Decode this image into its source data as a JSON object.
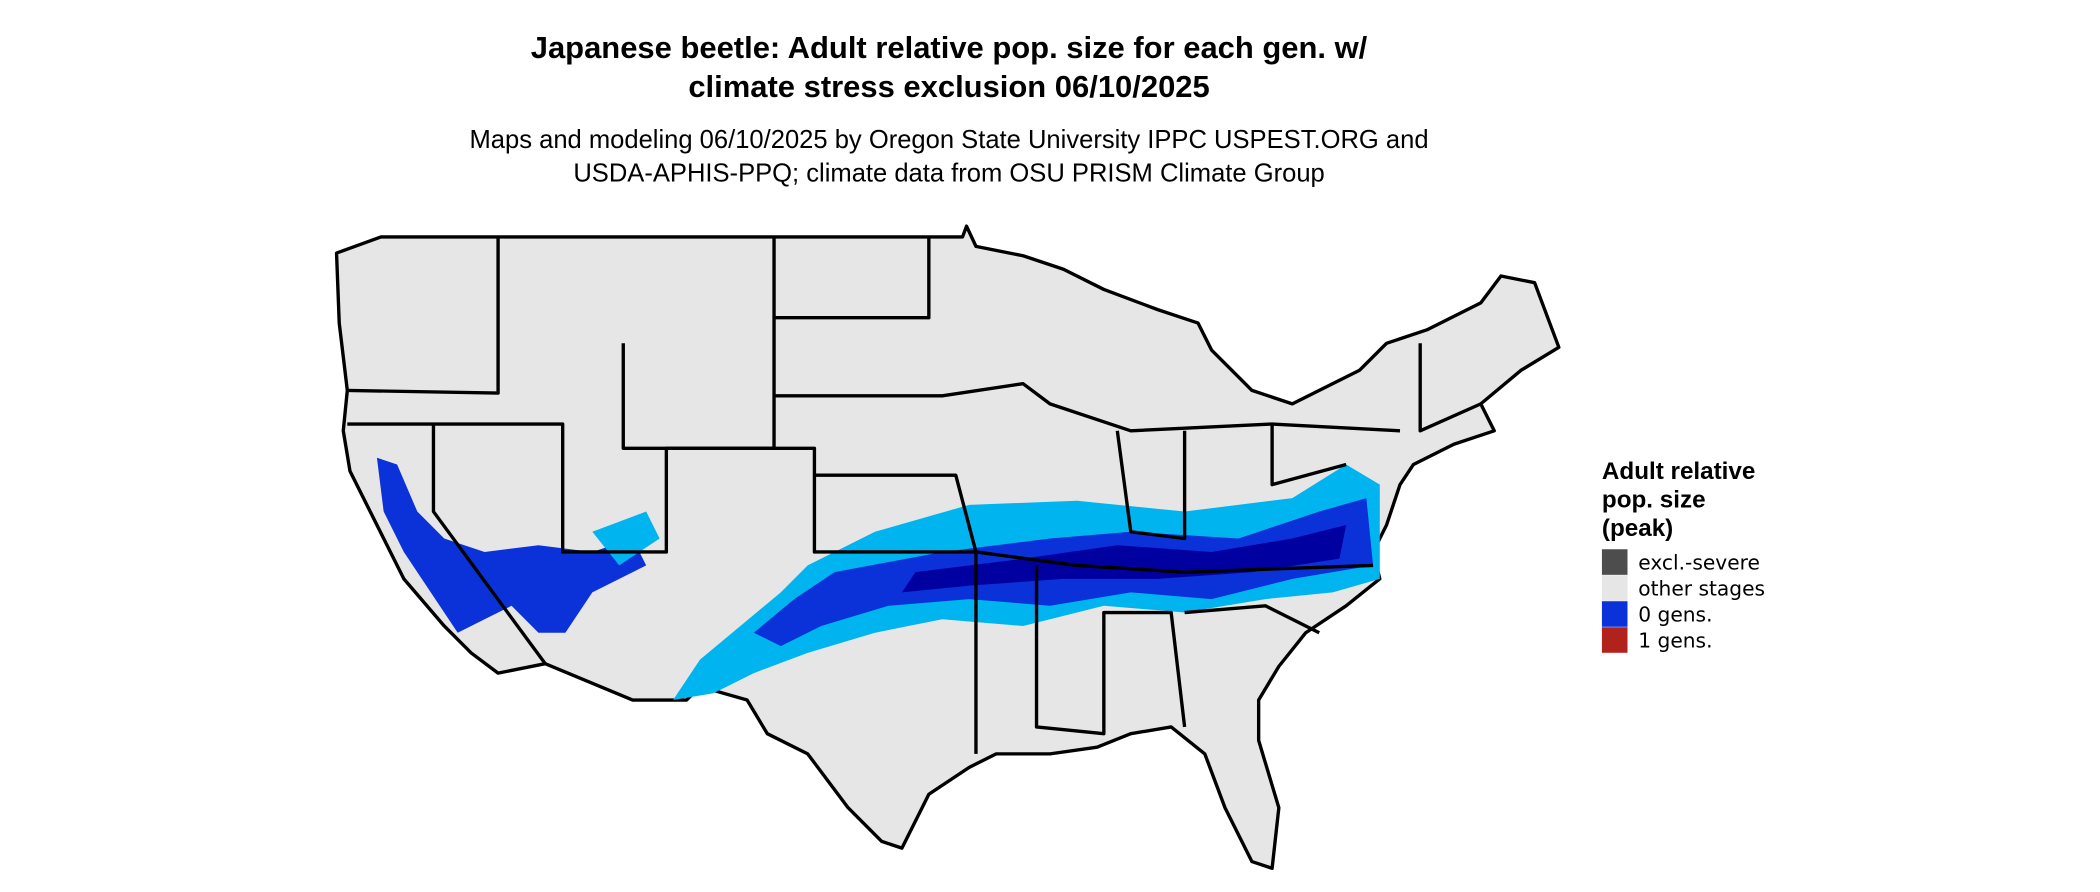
{
  "title": [
    "Japanese beetle: Adult relative pop. size for each gen. w/",
    "climate stress exclusion 06/10/2025"
  ],
  "subtitle": [
    "Maps and modeling 06/10/2025 by Oregon State University IPPC USPEST.ORG and",
    "USDA-APHIS-PPQ; climate data from OSU PRISM Climate Group"
  ],
  "legend": {
    "title": [
      "Adult relative",
      "pop. size",
      "(peak)"
    ],
    "items": [
      {
        "label": "excl.-severe",
        "color": "#4d4d4d"
      },
      {
        "label": "other stages",
        "color": "#e6e6e6"
      },
      {
        "label": "0 gens.",
        "color": "#0a32d8"
      },
      {
        "label": "1 gens.",
        "color": "#b2221c"
      }
    ]
  }
}
